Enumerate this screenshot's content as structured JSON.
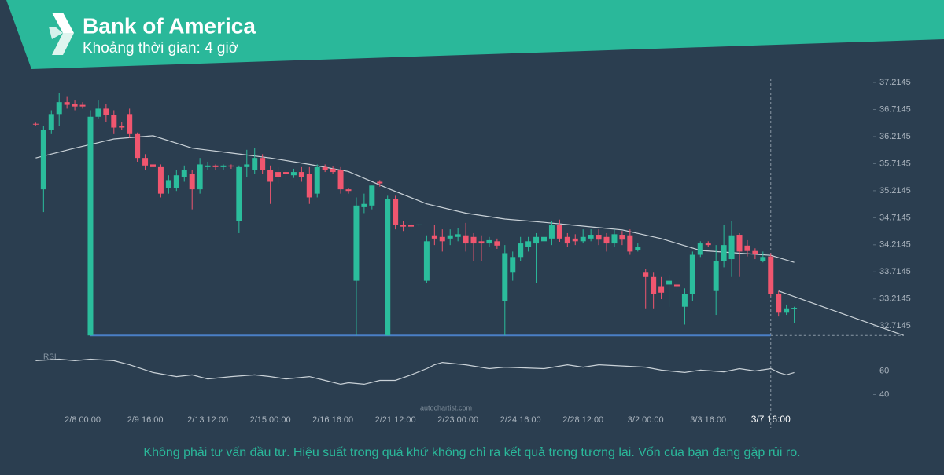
{
  "chart_data": {
    "type": "candlestick",
    "title": "Bank of America",
    "subtitle": "Khoảng thời gian: 4 giờ",
    "source": "autochartist.com",
    "footnote": "Không phải tư vấn đầu tư. Hiệu suất trong quá khứ không chỉ ra kết quả trong tương lai. Vốn của bạn đang gặp rủi ro.",
    "categories": [
      null,
      null,
      null,
      null,
      null,
      null,
      "2/8 00:00",
      null,
      null,
      null,
      null,
      null,
      null,
      null,
      "2/9 16:00",
      null,
      null,
      null,
      null,
      null,
      null,
      null,
      "2/13 12:00",
      null,
      null,
      null,
      null,
      null,
      null,
      null,
      "2/15 00:00",
      null,
      null,
      null,
      null,
      null,
      null,
      null,
      "2/16 16:00",
      null,
      null,
      null,
      null,
      null,
      null,
      null,
      "2/21 12:00",
      null,
      null,
      null,
      null,
      null,
      null,
      null,
      "2/23 00:00",
      null,
      null,
      null,
      null,
      null,
      null,
      null,
      "2/24 16:00",
      null,
      null,
      null,
      null,
      null,
      null,
      null,
      "2/28 12:00",
      null,
      null,
      null,
      null,
      null,
      null,
      null,
      "3/2 00:00",
      null,
      null,
      null,
      null,
      null,
      null,
      null,
      "3/3 16:00",
      null,
      null,
      null,
      null,
      null,
      null,
      null,
      "3/7 16:00",
      null,
      null,
      null
    ],
    "ohlc": [
      [
        36.45,
        36.47,
        36.42,
        36.44
      ],
      [
        35.24,
        36.41,
        34.82,
        36.33
      ],
      [
        36.33,
        36.7,
        36.26,
        36.63
      ],
      [
        36.63,
        37.02,
        36.41,
        36.85
      ],
      [
        36.85,
        36.96,
        36.73,
        36.8
      ],
      [
        36.82,
        36.88,
        36.7,
        36.77
      ],
      [
        36.8,
        36.85,
        36.73,
        36.77
      ],
      [
        32.54,
        36.7,
        32.54,
        36.58
      ],
      [
        36.58,
        36.88,
        36.55,
        36.73
      ],
      [
        36.73,
        36.82,
        36.48,
        36.61
      ],
      [
        36.61,
        36.7,
        36.26,
        36.38
      ],
      [
        36.41,
        36.48,
        36.33,
        36.38
      ],
      [
        36.63,
        36.73,
        36.19,
        36.26
      ],
      [
        36.26,
        36.29,
        35.75,
        35.82
      ],
      [
        35.82,
        35.89,
        35.6,
        35.68
      ],
      [
        35.7,
        35.82,
        35.53,
        35.65
      ],
      [
        35.65,
        35.7,
        35.09,
        35.16
      ],
      [
        35.26,
        35.5,
        35.16,
        35.41
      ],
      [
        35.26,
        35.6,
        35.21,
        35.5
      ],
      [
        35.46,
        35.68,
        35.38,
        35.6
      ],
      [
        35.53,
        35.6,
        34.87,
        35.24
      ],
      [
        35.24,
        35.82,
        35.16,
        35.7
      ],
      [
        35.65,
        35.75,
        35.6,
        35.68
      ],
      [
        35.68,
        35.7,
        35.6,
        35.65
      ],
      [
        35.65,
        35.7,
        35.6,
        35.68
      ],
      [
        35.68,
        35.7,
        35.62,
        35.66
      ],
      [
        34.65,
        35.68,
        34.43,
        35.65
      ],
      [
        35.65,
        35.97,
        35.46,
        35.7
      ],
      [
        35.6,
        36.0,
        35.53,
        35.82
      ],
      [
        35.82,
        35.89,
        35.53,
        35.6
      ],
      [
        35.6,
        35.68,
        34.97,
        35.38
      ],
      [
        35.56,
        35.65,
        35.35,
        35.46
      ],
      [
        35.56,
        35.6,
        35.41,
        35.53
      ],
      [
        35.5,
        35.62,
        35.45,
        35.56
      ],
      [
        35.56,
        35.65,
        35.38,
        35.46
      ],
      [
        35.53,
        35.65,
        34.97,
        35.09
      ],
      [
        35.16,
        35.7,
        35.09,
        35.65
      ],
      [
        35.65,
        35.7,
        35.56,
        35.6
      ],
      [
        35.62,
        35.66,
        35.52,
        35.56
      ],
      [
        35.6,
        35.65,
        35.16,
        35.24
      ],
      [
        35.24,
        35.26,
        35.16,
        35.21
      ],
      [
        33.55,
        35.09,
        32.54,
        34.94
      ],
      [
        34.91,
        35.16,
        34.8,
        34.97
      ],
      [
        34.94,
        35.31,
        34.87,
        35.31
      ],
      [
        35.38,
        35.41,
        35.29,
        35.35
      ],
      [
        32.54,
        35.12,
        32.54,
        35.06
      ],
      [
        35.06,
        35.12,
        34.5,
        34.58
      ],
      [
        34.58,
        34.65,
        34.47,
        34.55
      ],
      [
        34.58,
        34.62,
        34.5,
        34.55
      ],
      [
        34.58,
        34.6,
        34.55,
        34.59
      ],
      [
        33.55,
        34.39,
        33.51,
        34.28
      ],
      [
        34.39,
        34.58,
        34.21,
        34.33
      ],
      [
        34.36,
        34.5,
        34.09,
        34.28
      ],
      [
        34.33,
        34.5,
        34.21,
        34.39
      ],
      [
        34.36,
        34.53,
        34.28,
        34.41
      ],
      [
        34.39,
        34.62,
        34.09,
        34.24
      ],
      [
        34.36,
        34.43,
        33.92,
        34.24
      ],
      [
        34.28,
        34.39,
        33.92,
        34.24
      ],
      [
        34.24,
        34.36,
        34.18,
        34.3
      ],
      [
        34.28,
        34.33,
        34.14,
        34.2
      ],
      [
        33.18,
        34.21,
        32.54,
        34.06
      ],
      [
        33.7,
        34.09,
        33.55,
        33.99
      ],
      [
        33.99,
        34.36,
        33.92,
        34.24
      ],
      [
        34.18,
        34.36,
        34.09,
        34.28
      ],
      [
        34.24,
        34.43,
        33.51,
        34.36
      ],
      [
        34.28,
        34.43,
        34.14,
        34.36
      ],
      [
        34.33,
        34.65,
        34.21,
        34.58
      ],
      [
        34.58,
        34.68,
        34.27,
        34.33
      ],
      [
        34.36,
        34.43,
        34.18,
        34.24
      ],
      [
        34.33,
        34.41,
        34.21,
        34.28
      ],
      [
        34.28,
        34.5,
        34.24,
        34.36
      ],
      [
        34.33,
        34.5,
        34.28,
        34.4
      ],
      [
        34.4,
        34.5,
        34.21,
        34.31
      ],
      [
        34.36,
        34.43,
        34.09,
        34.24
      ],
      [
        34.24,
        34.5,
        34.18,
        34.41
      ],
      [
        34.4,
        34.47,
        34.21,
        34.31
      ],
      [
        34.39,
        34.5,
        34.03,
        34.09
      ],
      [
        34.12,
        34.24,
        34.09,
        34.18
      ],
      [
        33.7,
        33.77,
        33.04,
        33.62
      ],
      [
        33.62,
        33.7,
        33.04,
        33.3
      ],
      [
        33.45,
        33.62,
        33.21,
        33.33
      ],
      [
        33.48,
        33.66,
        33.07,
        33.55
      ],
      [
        33.48,
        33.52,
        33.4,
        33.45
      ],
      [
        33.07,
        33.41,
        32.74,
        33.3
      ],
      [
        33.3,
        34.09,
        33.18,
        34.03
      ],
      [
        34.03,
        34.28,
        33.99,
        34.24
      ],
      [
        34.24,
        34.28,
        34.18,
        34.21
      ],
      [
        33.36,
        34.21,
        32.92,
        33.92
      ],
      [
        33.92,
        34.58,
        33.8,
        34.21
      ],
      [
        33.95,
        34.65,
        33.62,
        34.39
      ],
      [
        34.4,
        34.43,
        33.62,
        34.09
      ],
      [
        34.2,
        34.3,
        34.0,
        34.1
      ],
      [
        34.1,
        34.15,
        33.95,
        34.05
      ],
      [
        33.92,
        34.09,
        33.89,
        33.99
      ],
      [
        34.0,
        34.06,
        33.26,
        33.3
      ],
      [
        33.3,
        33.36,
        32.89,
        32.96
      ],
      [
        32.96,
        33.11,
        32.92,
        33.04
      ],
      [
        33.04,
        33.07,
        32.77,
        33.05
      ]
    ],
    "up_color": "#2bbd9c",
    "down_color": "#f0566f",
    "ylim": [
      32.5,
      37.36
    ],
    "yticks": [
      37.2145,
      36.7145,
      36.2145,
      35.7145,
      35.2145,
      34.7145,
      34.2145,
      33.7145,
      33.2145,
      32.7145
    ],
    "moving_average": {
      "color": "#c9d1d7",
      "x": [
        0,
        5,
        10,
        15,
        20,
        25,
        30,
        35,
        40,
        45,
        50,
        55,
        60,
        65,
        70,
        75,
        80,
        85,
        90,
        94,
        97
      ],
      "values": [
        35.82,
        36.0,
        36.17,
        36.23,
        36.0,
        35.91,
        35.82,
        35.7,
        35.57,
        35.26,
        34.97,
        34.8,
        34.69,
        34.63,
        34.56,
        34.49,
        34.33,
        34.11,
        34.06,
        34.02,
        33.89
      ]
    },
    "support": {
      "color": "#4a7fc6",
      "value": 32.54,
      "x": [
        7,
        94
      ]
    },
    "forecast": {
      "color": "#c9d1d7",
      "x": [
        95,
        111
      ],
      "values": [
        33.36,
        32.54
      ]
    },
    "rsi": {
      "label": "RSI",
      "color": "#c9d1d7",
      "ylim": [
        35,
        75
      ],
      "yticks": [
        60,
        40
      ],
      "x": [
        0,
        3,
        5,
        7,
        10,
        12,
        15,
        18,
        20,
        22,
        25,
        28,
        30,
        32,
        35,
        37,
        39,
        40,
        42,
        44,
        46,
        48,
        50,
        51,
        52,
        55,
        58,
        60,
        65,
        68,
        70,
        72,
        78,
        80,
        83,
        85,
        88,
        90,
        92,
        94,
        95,
        96,
        97
      ],
      "values": [
        68.7,
        70,
        68.7,
        70,
        68.7,
        65.3,
        58.7,
        55.3,
        56.7,
        53.3,
        55.3,
        56.7,
        55.3,
        53.3,
        55.3,
        52,
        48.7,
        50,
        48.7,
        52,
        52,
        56.7,
        62,
        65.3,
        67.3,
        65.3,
        62,
        63.3,
        62,
        65.3,
        63.3,
        65.3,
        63.3,
        60.7,
        58.7,
        60.7,
        59.3,
        62,
        60,
        62,
        58.7,
        56.7,
        58.7
      ]
    }
  }
}
